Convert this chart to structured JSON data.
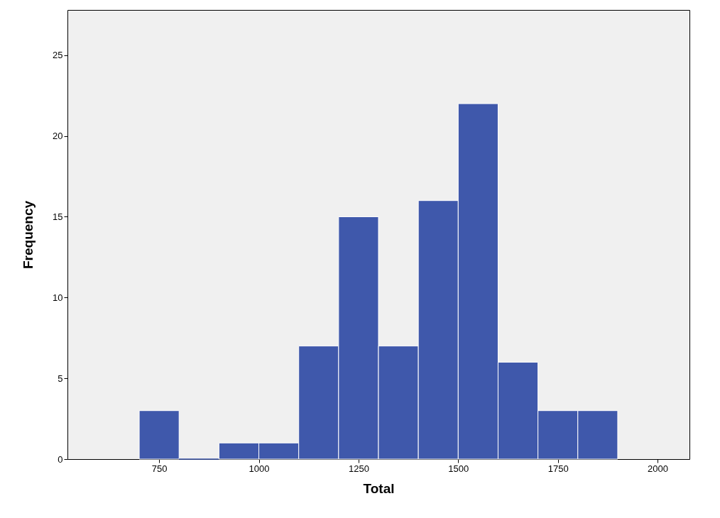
{
  "chart_data": {
    "type": "histogram",
    "xlabel": "Total",
    "ylabel": "Frequency",
    "bins": [
      700,
      800,
      900,
      1000,
      1100,
      1200,
      1300,
      1400,
      1500,
      1600,
      1700,
      1800,
      1900
    ],
    "values": [
      3,
      0,
      1,
      1,
      7,
      15,
      7,
      16,
      22,
      6,
      3,
      3
    ],
    "color": "#3f58ab",
    "xlim": [
      520,
      2080
    ],
    "xticks": [
      750,
      1000,
      1250,
      1500,
      1750,
      2000
    ],
    "ylim": [
      0,
      27.8
    ],
    "yticks": [
      0,
      5,
      10,
      15,
      20,
      25
    ]
  }
}
